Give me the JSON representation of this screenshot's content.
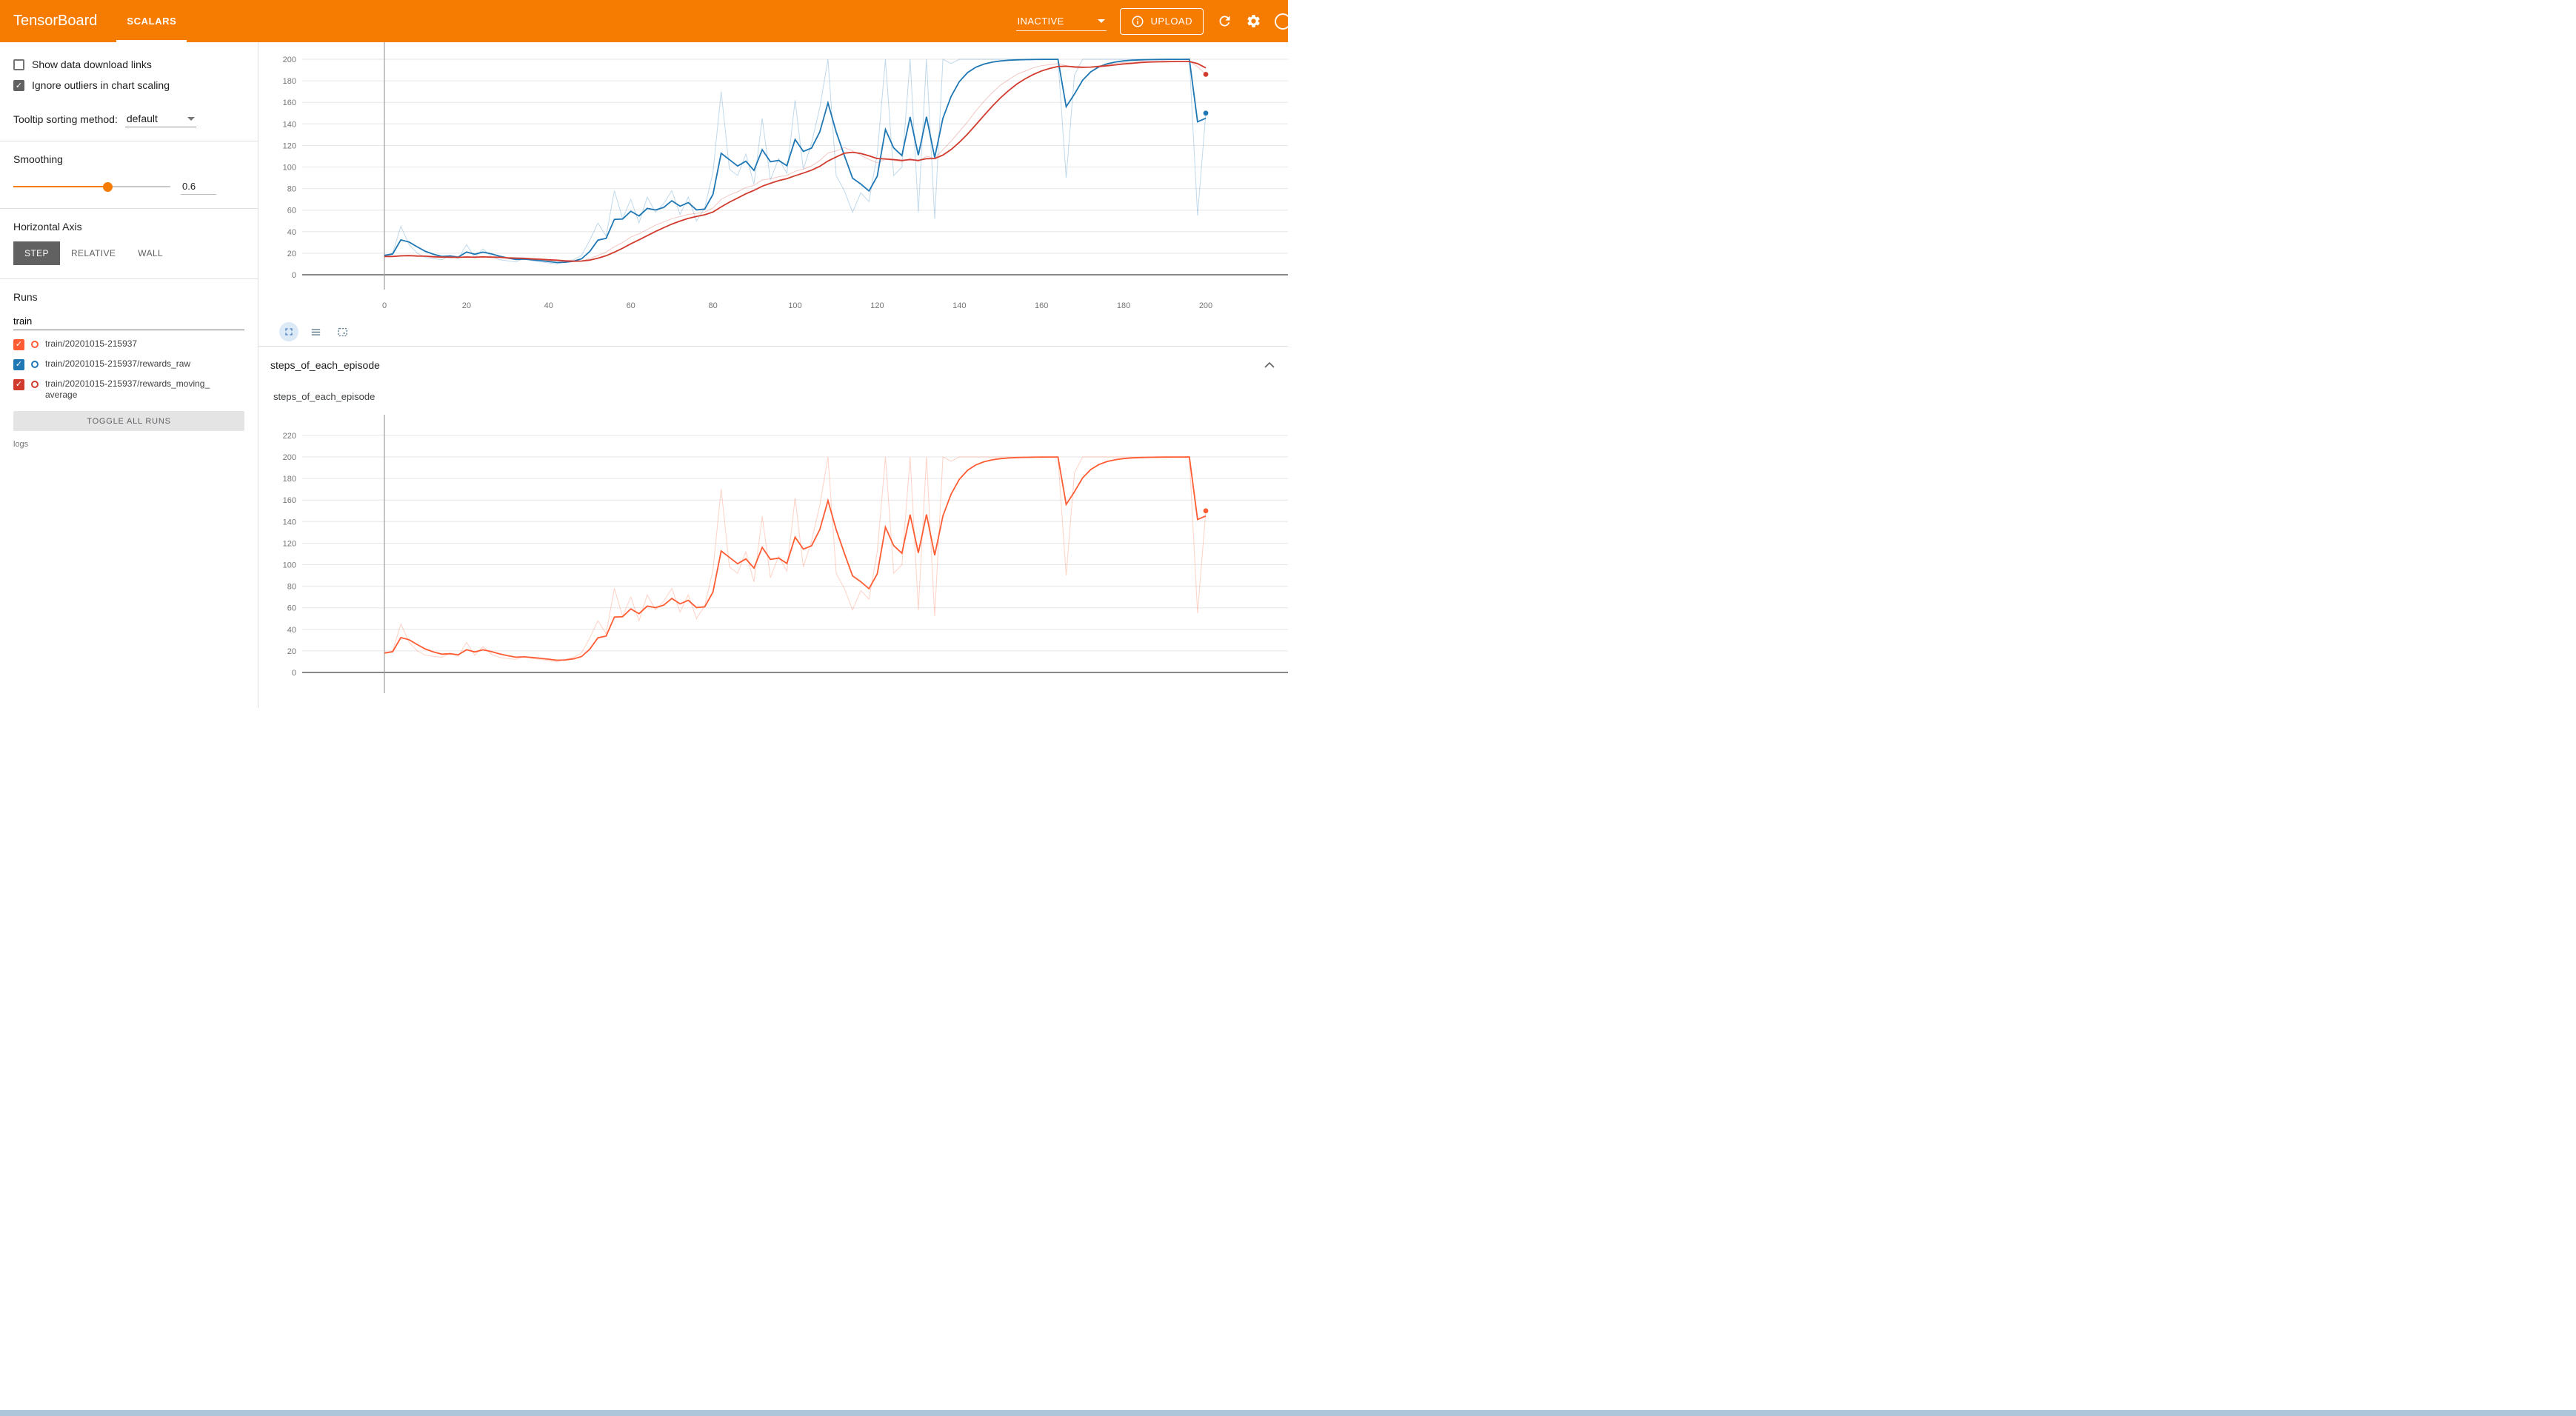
{
  "header": {
    "app_title": "TensorBoard",
    "tabs": [
      {
        "label": "SCALARS",
        "active": true
      }
    ],
    "status_dropdown": {
      "value": "INACTIVE"
    },
    "upload_button": {
      "label": "UPLOAD"
    },
    "icons": [
      "info-icon",
      "refresh-icon",
      "gear-icon",
      "help-icon"
    ]
  },
  "sidebar": {
    "checkboxes": [
      {
        "label": "Show data download links",
        "checked": false
      },
      {
        "label": "Ignore outliers in chart scaling",
        "checked": true
      }
    ],
    "tooltip_sorting": {
      "label": "Tooltip sorting method:",
      "value": "default"
    },
    "smoothing": {
      "label": "Smoothing",
      "value": "0.6"
    },
    "horizontal_axis": {
      "label": "Horizontal Axis",
      "options": [
        "STEP",
        "RELATIVE",
        "WALL"
      ],
      "selected": "STEP"
    },
    "runs": {
      "label": "Runs",
      "filter_value": "train",
      "items": [
        {
          "label": "train/20201015-215937",
          "color": "#ff5c33",
          "checked": true
        },
        {
          "label": "train/20201015-215937/rewards_raw",
          "color": "#1f77b4",
          "checked": true
        },
        {
          "label": "train/20201015-215937/rewards_moving_average",
          "color": "#d13b2e",
          "checked": true
        }
      ],
      "toggle_all_label": "TOGGLE ALL RUNS"
    },
    "footer": "logs"
  },
  "main": {
    "section_title": "steps_of_each_episode",
    "card_title": "steps_of_each_episode",
    "chart_toolbar_icons": [
      "expand-icon",
      "data-table-icon",
      "fit-domain-icon"
    ]
  },
  "chart_data": [
    {
      "type": "line",
      "title": "",
      "smoothing": 0.6,
      "x_ticks": [
        0,
        20,
        40,
        60,
        80,
        100,
        120,
        140,
        160,
        180,
        200
      ],
      "y_ticks": [
        0,
        20,
        40,
        60,
        80,
        100,
        120,
        140,
        160,
        180,
        200
      ],
      "series": [
        {
          "name": "train/20201015-215937/rewards_raw",
          "color": "#1f77b4",
          "x_start": 0,
          "x_step": 2,
          "values": [
            18,
            20,
            45,
            28,
            20,
            16,
            15,
            14,
            18,
            15,
            28,
            16,
            24,
            17,
            14,
            13,
            12,
            15,
            13,
            12,
            11,
            10,
            12,
            14,
            18,
            32,
            48,
            36,
            78,
            52,
            70,
            48,
            72,
            58,
            66,
            78,
            56,
            72,
            50,
            62,
            95,
            170,
            98,
            92,
            112,
            84,
            145,
            88,
            108,
            94,
            162,
            98,
            122,
            155,
            200,
            92,
            78,
            58,
            76,
            68,
            112,
            200,
            92,
            100,
            200,
            58,
            200,
            52,
            200,
            196,
            200,
            200,
            200,
            200,
            200,
            200,
            200,
            200,
            200,
            200,
            200,
            200,
            200,
            90,
            185,
            200,
            200,
            200,
            200,
            200,
            200,
            200,
            200,
            200,
            200,
            200,
            200,
            200,
            200,
            55,
            150
          ]
        },
        {
          "name": "train/20201015-215937/rewards_moving_average",
          "color": "#d13b2e",
          "x_start": 0,
          "x_step": 2,
          "values": [
            17,
            17,
            18,
            18,
            17,
            17,
            16,
            16,
            16,
            16,
            17,
            16,
            17,
            16,
            16,
            15,
            15,
            15,
            14,
            14,
            13,
            13,
            12,
            12,
            13,
            15,
            18,
            21,
            26,
            30,
            35,
            38,
            42,
            46,
            49,
            52,
            54,
            56,
            57,
            58,
            62,
            70,
            74,
            77,
            81,
            83,
            88,
            89,
            91,
            92,
            96,
            98,
            101,
            106,
            113,
            115,
            118,
            115,
            111,
            107,
            104,
            107,
            106,
            105,
            108,
            105,
            110,
            108,
            116,
            124,
            133,
            142,
            152,
            161,
            169,
            176,
            181,
            186,
            189,
            192,
            194,
            195,
            196,
            194,
            192,
            192,
            193,
            194,
            195,
            196,
            197,
            197,
            198,
            198,
            198,
            198,
            198,
            198,
            198,
            193,
            186
          ]
        }
      ]
    },
    {
      "type": "line",
      "title": "steps_of_each_episode",
      "smoothing": 0.6,
      "x_ticks": [],
      "y_ticks": [
        0,
        20,
        40,
        60,
        80,
        100,
        120,
        140,
        160,
        180,
        200,
        220
      ],
      "series": [
        {
          "name": "train/20201015-215937",
          "color": "#ff5c33",
          "x_start": 0,
          "x_step": 2,
          "values": [
            18,
            20,
            45,
            28,
            20,
            16,
            15,
            14,
            18,
            15,
            28,
            16,
            24,
            17,
            14,
            13,
            12,
            15,
            13,
            12,
            11,
            10,
            12,
            14,
            18,
            32,
            48,
            36,
            78,
            52,
            70,
            48,
            72,
            58,
            66,
            78,
            56,
            72,
            50,
            62,
            95,
            170,
            98,
            92,
            112,
            84,
            145,
            88,
            108,
            94,
            162,
            98,
            122,
            155,
            200,
            92,
            78,
            58,
            76,
            68,
            112,
            200,
            92,
            100,
            200,
            58,
            200,
            52,
            200,
            196,
            200,
            200,
            200,
            200,
            200,
            200,
            200,
            200,
            200,
            200,
            200,
            200,
            200,
            90,
            185,
            200,
            200,
            200,
            200,
            200,
            200,
            200,
            200,
            200,
            200,
            200,
            200,
            200,
            200,
            55,
            150
          ]
        }
      ]
    }
  ]
}
